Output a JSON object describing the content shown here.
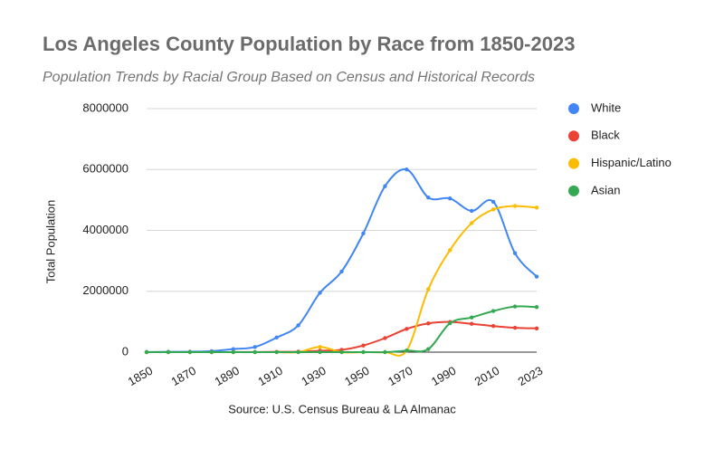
{
  "chart_data": {
    "type": "line",
    "title": "Los Angeles County Population by Race from 1850-2023",
    "subtitle": "Population Trends by Racial Group Based on Census and Historical Records",
    "y_label": "Total Population",
    "source": "Source: U.S. Census Bureau & LA Almanac",
    "categories": [
      "1850",
      null,
      "1870",
      null,
      "1890",
      null,
      "1910",
      null,
      "1930",
      null,
      "1950",
      null,
      "1970",
      null,
      "1990",
      null,
      "2010",
      null,
      "2023"
    ],
    "series": [
      {
        "name": "White",
        "color": "#4285f4",
        "values": [
          3500,
          11000,
          15000,
          33000,
          100000,
          170000,
          480000,
          880000,
          1950000,
          2650000,
          3900000,
          5450000,
          6000000,
          5080000,
          5050000,
          4640000,
          4940000,
          3250000,
          2480000
        ]
      },
      {
        "name": "Black",
        "color": "#ea4335",
        "values": [
          10,
          70,
          130,
          200,
          1800,
          2800,
          9400,
          15600,
          46400,
          75200,
          218000,
          461000,
          762000,
          944000,
          992000,
          930000,
          857000,
          800000,
          780000
        ]
      },
      {
        "name": "Hispanic/Latino",
        "color": "#fbbc04",
        "values": [
          0,
          0,
          0,
          0,
          0,
          0,
          0,
          0,
          170000,
          0,
          0,
          0,
          50000,
          2070000,
          3350000,
          4240000,
          4690000,
          4800000,
          4750000
        ]
      },
      {
        "name": "Asian",
        "color": "#34a853",
        "values": [
          0,
          0,
          0,
          0,
          0,
          0,
          0,
          0,
          0,
          0,
          0,
          0,
          50000,
          100000,
          950000,
          1140000,
          1350000,
          1500000,
          1480000
        ]
      }
    ],
    "ylim": [
      0,
      8000000
    ],
    "yticks": [
      0,
      2000000,
      4000000,
      6000000,
      8000000
    ],
    "grid": true,
    "smooth": true,
    "legend": "right"
  }
}
